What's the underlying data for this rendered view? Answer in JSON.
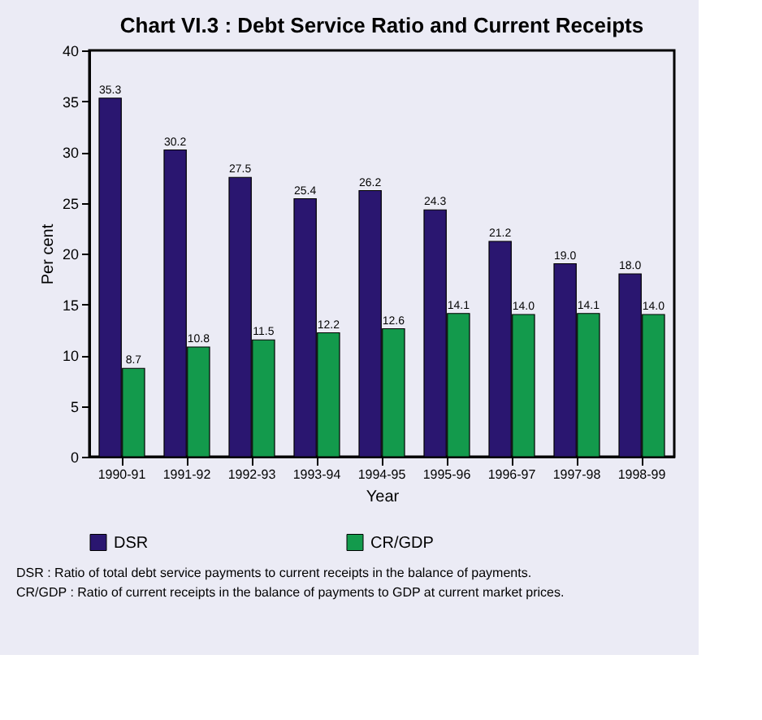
{
  "chart_data": {
    "type": "bar",
    "title": "Chart VI.3 : Debt Service Ratio and Current Receipts",
    "xlabel": "Year",
    "ylabel": "Per cent",
    "categories": [
      "1990-91",
      "1991-92",
      "1992-93",
      "1993-94",
      "1994-95",
      "1995-96",
      "1996-97",
      "1997-98",
      "1998-99"
    ],
    "series": [
      {
        "name": "DSR",
        "color": "#2a1670",
        "values": [
          35.3,
          30.2,
          27.5,
          25.4,
          26.2,
          24.3,
          21.2,
          19.0,
          18.0
        ],
        "value_labels": [
          "35.3",
          "30.2",
          "27.5",
          "25.4",
          "26.2",
          "24.3",
          "21.2",
          "19.0",
          "18.0"
        ]
      },
      {
        "name": "CR/GDP",
        "color": "#139a4c",
        "values": [
          8.7,
          10.8,
          11.5,
          12.2,
          12.6,
          14.1,
          14.0,
          14.1,
          14.0
        ],
        "value_labels": [
          "8.7",
          "10.8",
          "11.5",
          "12.2",
          "12.6",
          "14.1",
          "14.0",
          "14.1",
          "14.0"
        ]
      }
    ],
    "ylim": [
      0,
      40
    ],
    "yticks": [
      0,
      5,
      10,
      15,
      20,
      25,
      30,
      35,
      40
    ],
    "grid": false,
    "legend": "bottom",
    "annotations": [
      "DSR : Ratio of total debt service payments to current receipts in the balance of payments.",
      "CR/GDP : Ratio of current receipts in the balance of payments to GDP at current market prices."
    ]
  }
}
